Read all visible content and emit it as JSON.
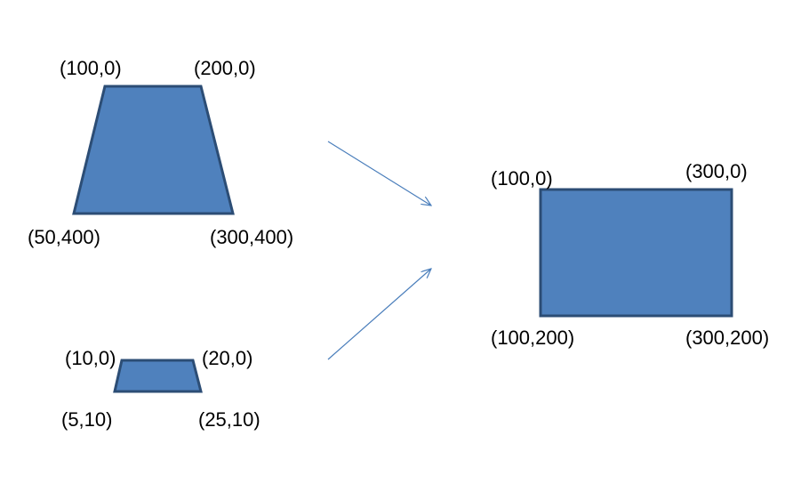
{
  "colors": {
    "shape_fill": "#4F81BD",
    "shape_stroke": "#2C4D75",
    "arrow": "#4A7EBB",
    "text": "#000000",
    "background": "#FFFFFF"
  },
  "large_trapezoid": {
    "top_left_label": "(100,0)",
    "top_right_label": "(200,0)",
    "bottom_left_label": "(50,400)",
    "bottom_right_label": "(300,400)"
  },
  "small_trapezoid": {
    "top_left_label": "(10,0)",
    "top_right_label": "(20,0)",
    "bottom_left_label": "(5,10)",
    "bottom_right_label": "(25,10)"
  },
  "rectangle": {
    "top_left_label": "(100,0)",
    "top_right_label": "(300,0)",
    "bottom_left_label": "(100,200)",
    "bottom_right_label": "(300,200)"
  }
}
